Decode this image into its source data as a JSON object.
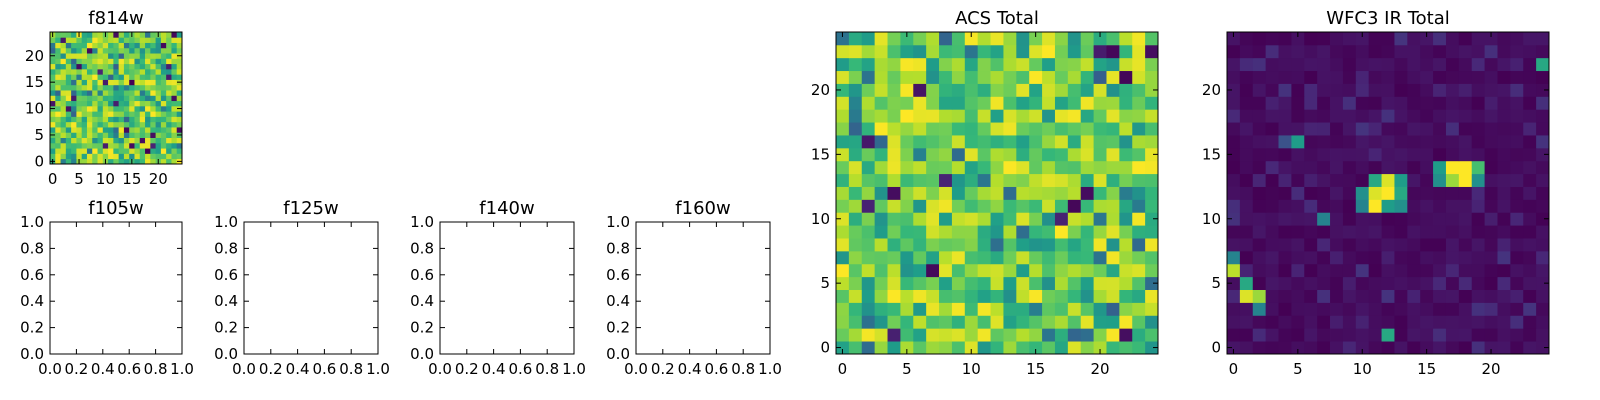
{
  "chart_data": [
    {
      "id": "f814w",
      "type": "heatmap",
      "title": "f814w",
      "grid": "25x25",
      "colormap": "viridis",
      "xlim": [
        -0.5,
        24.5
      ],
      "ylim": [
        -0.5,
        24.5
      ],
      "xticks": [
        0,
        5,
        10,
        15,
        20
      ],
      "yticks": [
        0,
        5,
        10,
        15,
        20
      ],
      "seed": 7,
      "background": "noise",
      "values": "pixel noise, mostly yellow-green with scattered dark pixels"
    },
    {
      "id": "f105w",
      "type": "empty",
      "title": "f105w",
      "xlim": [
        0,
        1
      ],
      "ylim": [
        0,
        1
      ],
      "xticks": [
        "0.0",
        "0.2",
        "0.4",
        "0.6",
        "0.8",
        "1.0"
      ],
      "yticks": [
        "0.0",
        "0.2",
        "0.4",
        "0.6",
        "0.8",
        "1.0"
      ]
    },
    {
      "id": "f125w",
      "type": "empty",
      "title": "f125w",
      "xlim": [
        0,
        1
      ],
      "ylim": [
        0,
        1
      ],
      "xticks": [
        "0.0",
        "0.2",
        "0.4",
        "0.6",
        "0.8",
        "1.0"
      ],
      "yticks": [
        "0.0",
        "0.2",
        "0.4",
        "0.6",
        "0.8",
        "1.0"
      ]
    },
    {
      "id": "f140w",
      "type": "empty",
      "title": "f140w",
      "xlim": [
        0,
        1
      ],
      "ylim": [
        0,
        1
      ],
      "xticks": [
        "0.0",
        "0.2",
        "0.4",
        "0.6",
        "0.8",
        "1.0"
      ],
      "yticks": [
        "0.0",
        "0.2",
        "0.4",
        "0.6",
        "0.8",
        "1.0"
      ]
    },
    {
      "id": "f160w",
      "type": "empty",
      "title": "f160w",
      "xlim": [
        0,
        1
      ],
      "ylim": [
        0,
        1
      ],
      "xticks": [
        "0.0",
        "0.2",
        "0.4",
        "0.6",
        "0.8",
        "1.0"
      ],
      "yticks": [
        "0.0",
        "0.2",
        "0.4",
        "0.6",
        "0.8",
        "1.0"
      ]
    },
    {
      "id": "acs",
      "type": "heatmap",
      "title": "ACS Total",
      "grid": "25x25",
      "colormap": "viridis",
      "xlim": [
        -0.5,
        24.5
      ],
      "ylim": [
        -0.5,
        24.5
      ],
      "xticks": [
        0,
        5,
        10,
        15,
        20
      ],
      "yticks": [
        0,
        5,
        10,
        15,
        20
      ],
      "seed": 13,
      "background": "noise",
      "values": "pixel noise, mostly yellow-green with a few dark pixels"
    },
    {
      "id": "wfc3",
      "type": "heatmap",
      "title": "WFC3 IR Total",
      "grid": "25x25",
      "colormap": "viridis",
      "xlim": [
        -0.5,
        24.5
      ],
      "ylim": [
        -0.5,
        24.5
      ],
      "xticks": [
        0,
        5,
        10,
        15,
        20
      ],
      "yticks": [
        0,
        5,
        10,
        15,
        20
      ],
      "seed": 29,
      "background": "dark",
      "sources": [
        {
          "x": 11,
          "y": 12,
          "v": 0.95
        },
        {
          "x": 12,
          "y": 12,
          "v": 1.0
        },
        {
          "x": 11,
          "y": 11,
          "v": 1.0
        },
        {
          "x": 12,
          "y": 13,
          "v": 0.95
        },
        {
          "x": 10,
          "y": 12,
          "v": 0.5
        },
        {
          "x": 10,
          "y": 11,
          "v": 0.45
        },
        {
          "x": 13,
          "y": 13,
          "v": 0.55
        },
        {
          "x": 13,
          "y": 12,
          "v": 0.6
        },
        {
          "x": 12,
          "y": 11,
          "v": 0.55
        },
        {
          "x": 13,
          "y": 11,
          "v": 0.5
        },
        {
          "x": 11,
          "y": 13,
          "v": 0.6
        },
        {
          "x": 17,
          "y": 14,
          "v": 1.0
        },
        {
          "x": 18,
          "y": 14,
          "v": 1.0
        },
        {
          "x": 18,
          "y": 13,
          "v": 1.0
        },
        {
          "x": 17,
          "y": 13,
          "v": 0.85
        },
        {
          "x": 19,
          "y": 14,
          "v": 0.7
        },
        {
          "x": 16,
          "y": 14,
          "v": 0.55
        },
        {
          "x": 16,
          "y": 13,
          "v": 0.5
        },
        {
          "x": 19,
          "y": 13,
          "v": 0.5
        },
        {
          "x": 0,
          "y": 6,
          "v": 0.9
        },
        {
          "x": 1,
          "y": 5,
          "v": 0.6
        },
        {
          "x": 1,
          "y": 4,
          "v": 0.95
        },
        {
          "x": 2,
          "y": 4,
          "v": 0.85
        },
        {
          "x": 2,
          "y": 3,
          "v": 0.45
        },
        {
          "x": 0,
          "y": 7,
          "v": 0.45
        },
        {
          "x": 5,
          "y": 16,
          "v": 0.55
        },
        {
          "x": 4,
          "y": 16,
          "v": 0.25
        },
        {
          "x": 7,
          "y": 10,
          "v": 0.45
        },
        {
          "x": 12,
          "y": 1,
          "v": 0.6
        },
        {
          "x": 24,
          "y": 22,
          "v": 0.6
        }
      ]
    }
  ]
}
